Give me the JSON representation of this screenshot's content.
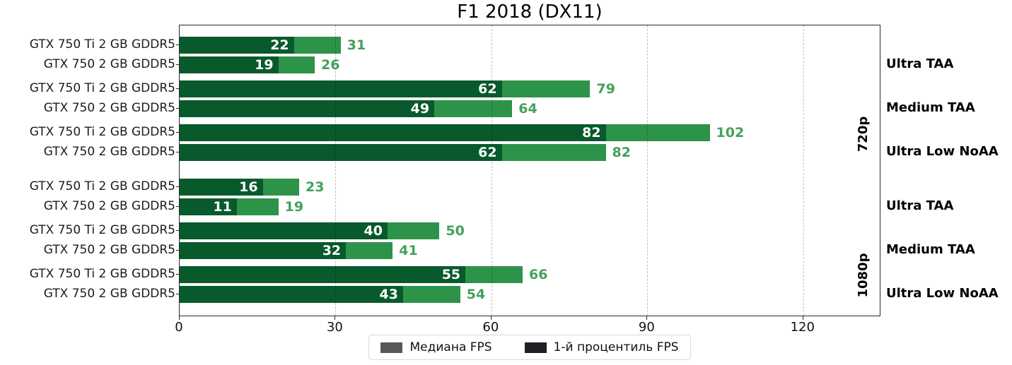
{
  "chart_data": {
    "type": "bar",
    "orientation": "horizontal",
    "title": "F1 2018 (DX11)",
    "xlabel": "",
    "ylabel": "",
    "xlim": [
      0,
      135
    ],
    "xticks": [
      0,
      30,
      60,
      90,
      120
    ],
    "grid": "vertical-dashed",
    "colors": {
      "percentile_bar": "#085a2c",
      "median_bar": "#2d9348",
      "median_value_label": "#43a15a",
      "percentile_value_label": "#ffffff"
    },
    "legend": {
      "position": "bottom-center",
      "items": [
        {
          "label": "Медиана FPS",
          "swatch_color": "#58585a"
        },
        {
          "label": "1-й процентиль FPS",
          "swatch_color": "#202024"
        }
      ]
    },
    "sections": [
      {
        "resolution": "720p",
        "groups": [
          {
            "setting": "Ultra TAA",
            "rows": [
              {
                "gpu": "GTX 750 Ti 2 GB GDDR5",
                "percentile_fps": 22,
                "median_fps": 31
              },
              {
                "gpu": "GTX 750 2 GB GDDR5",
                "percentile_fps": 19,
                "median_fps": 26
              }
            ]
          },
          {
            "setting": "Medium TAA",
            "rows": [
              {
                "gpu": "GTX 750 Ti 2 GB GDDR5",
                "percentile_fps": 62,
                "median_fps": 79
              },
              {
                "gpu": "GTX 750 2 GB GDDR5",
                "percentile_fps": 49,
                "median_fps": 64
              }
            ]
          },
          {
            "setting": "Ultra Low NoAA",
            "rows": [
              {
                "gpu": "GTX 750 Ti 2 GB GDDR5",
                "percentile_fps": 82,
                "median_fps": 102
              },
              {
                "gpu": "GTX 750 2 GB GDDR5",
                "percentile_fps": 62,
                "median_fps": 82
              }
            ]
          }
        ]
      },
      {
        "resolution": "1080p",
        "groups": [
          {
            "setting": "Ultra TAA",
            "rows": [
              {
                "gpu": "GTX 750 Ti 2 GB GDDR5",
                "percentile_fps": 16,
                "median_fps": 23
              },
              {
                "gpu": "GTX 750 2 GB GDDR5",
                "percentile_fps": 11,
                "median_fps": 19
              }
            ]
          },
          {
            "setting": "Medium TAA",
            "rows": [
              {
                "gpu": "GTX 750 Ti 2 GB GDDR5",
                "percentile_fps": 40,
                "median_fps": 50
              },
              {
                "gpu": "GTX 750 2 GB GDDR5",
                "percentile_fps": 32,
                "median_fps": 41
              }
            ]
          },
          {
            "setting": "Ultra Low NoAA",
            "rows": [
              {
                "gpu": "GTX 750 Ti 2 GB GDDR5",
                "percentile_fps": 55,
                "median_fps": 66
              },
              {
                "gpu": "GTX 750 2 GB GDDR5",
                "percentile_fps": 43,
                "median_fps": 54
              }
            ]
          }
        ]
      }
    ]
  }
}
